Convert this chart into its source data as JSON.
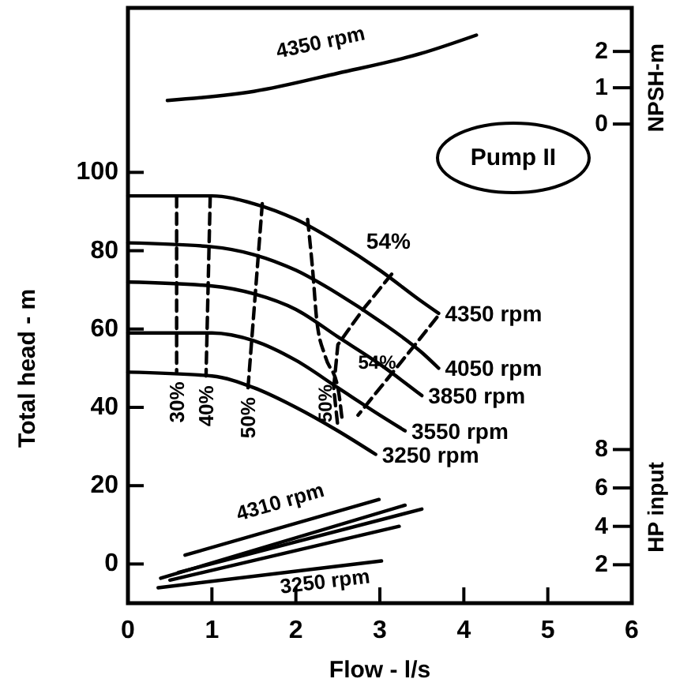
{
  "chart_data": {
    "type": "line",
    "xlabel": "Flow - l/s",
    "ylabel": "Total head - m",
    "y2label": "NPSH-m",
    "y3label": "HP input",
    "xlim": [
      0,
      6
    ],
    "xticks": [
      0,
      1,
      2,
      3,
      4,
      5,
      6
    ],
    "ylim": [
      -10,
      142
    ],
    "yticks": [
      0,
      20,
      40,
      60,
      80,
      100
    ],
    "y2lim": [
      -13.2,
      3.2
    ],
    "y2ticks": [
      0,
      1,
      2
    ],
    "y3lim": [
      0,
      31
    ],
    "y3ticks": [
      2,
      4,
      6,
      8
    ],
    "grid": false,
    "annotations": [
      "Pump II"
    ],
    "series": [
      {
        "name": "4350 rpm",
        "color": "#000000",
        "x": [
          0,
          1,
          1.5,
          2,
          2.5,
          3,
          3.5,
          3.7
        ],
        "values": [
          94,
          94,
          92,
          88,
          82,
          75,
          67,
          64
        ]
      },
      {
        "name": "4050 rpm",
        "color": "#000000",
        "x": [
          0,
          1,
          1.5,
          2,
          2.5,
          3,
          3.5,
          3.7
        ],
        "values": [
          82,
          81,
          79,
          75,
          69,
          62,
          54,
          50
        ]
      },
      {
        "name": "3850 rpm",
        "color": "#000000",
        "x": [
          0,
          1,
          1.5,
          2,
          2.5,
          3,
          3.5
        ],
        "values": [
          72,
          71,
          69,
          65,
          58,
          51,
          43
        ]
      },
      {
        "name": "3550 rpm",
        "color": "#000000",
        "x": [
          0,
          1,
          1.5,
          2,
          2.5,
          3,
          3.3
        ],
        "values": [
          59,
          59,
          57,
          52,
          45,
          38,
          34
        ]
      },
      {
        "name": "3250 rpm",
        "color": "#000000",
        "x": [
          0,
          1,
          1.5,
          2,
          2.5,
          2.95
        ],
        "values": [
          49,
          48,
          45,
          40,
          34,
          28
        ]
      },
      {
        "name": "30%",
        "color": "#000000",
        "line_style": "dashed",
        "x": [
          0.58,
          0.58
        ],
        "values": [
          94,
          49
        ]
      },
      {
        "name": "40%",
        "color": "#000000",
        "line_style": "dashed",
        "x": [
          0.98,
          0.93
        ],
        "values": [
          94,
          48
        ]
      },
      {
        "name": "50%",
        "color": "#000000",
        "line_style": "dashed",
        "x": [
          1.6,
          1.43
        ],
        "values": [
          92,
          45
        ]
      },
      {
        "name": "50%",
        "color": "#000000",
        "line_style": "dashed",
        "x": [
          2.14,
          2.2,
          2.25,
          2.35,
          2.5,
          2.55
        ],
        "values": [
          88,
          75,
          62,
          53,
          45,
          37
        ]
      },
      {
        "name": "54%",
        "color": "#000000",
        "line_style": "dashed",
        "x": [
          3.14,
          2.8,
          2.5,
          2.45,
          2.5
        ],
        "values": [
          74,
          65,
          56,
          45,
          35
        ]
      },
      {
        "name": "54%",
        "color": "#000000",
        "line_style": "dashed",
        "x": [
          3.68,
          3.42,
          3.08,
          2.74
        ],
        "values": [
          63,
          56,
          47,
          38
        ]
      },
      {
        "name": "4350 rpm",
        "color": "#000000",
        "axis": "y2",
        "x": [
          0.47,
          1.5,
          2.5,
          3.5,
          4.15
        ],
        "values": [
          0.65,
          0.9,
          1.4,
          1.95,
          2.45
        ]
      },
      {
        "name": "4310 rpm",
        "color": "#000000",
        "axis": "y3",
        "x": [
          0.68,
          2.99
        ],
        "values": [
          2.5,
          5.4
        ]
      },
      {
        "color": "#000000",
        "axis": "y3",
        "x": [
          0.39,
          3.3
        ],
        "values": [
          1.3,
          5.1
        ]
      },
      {
        "color": "#000000",
        "axis": "y3",
        "x": [
          0.6,
          3.5
        ],
        "values": [
          1.6,
          4.9
        ]
      },
      {
        "color": "#000000",
        "axis": "y3",
        "x": [
          0.5,
          3.23
        ],
        "values": [
          1.2,
          4.0
        ]
      },
      {
        "name": "3250 rpm",
        "color": "#000000",
        "axis": "y3",
        "x": [
          0.36,
          3.02
        ],
        "values": [
          0.8,
          2.2
        ]
      }
    ]
  }
}
